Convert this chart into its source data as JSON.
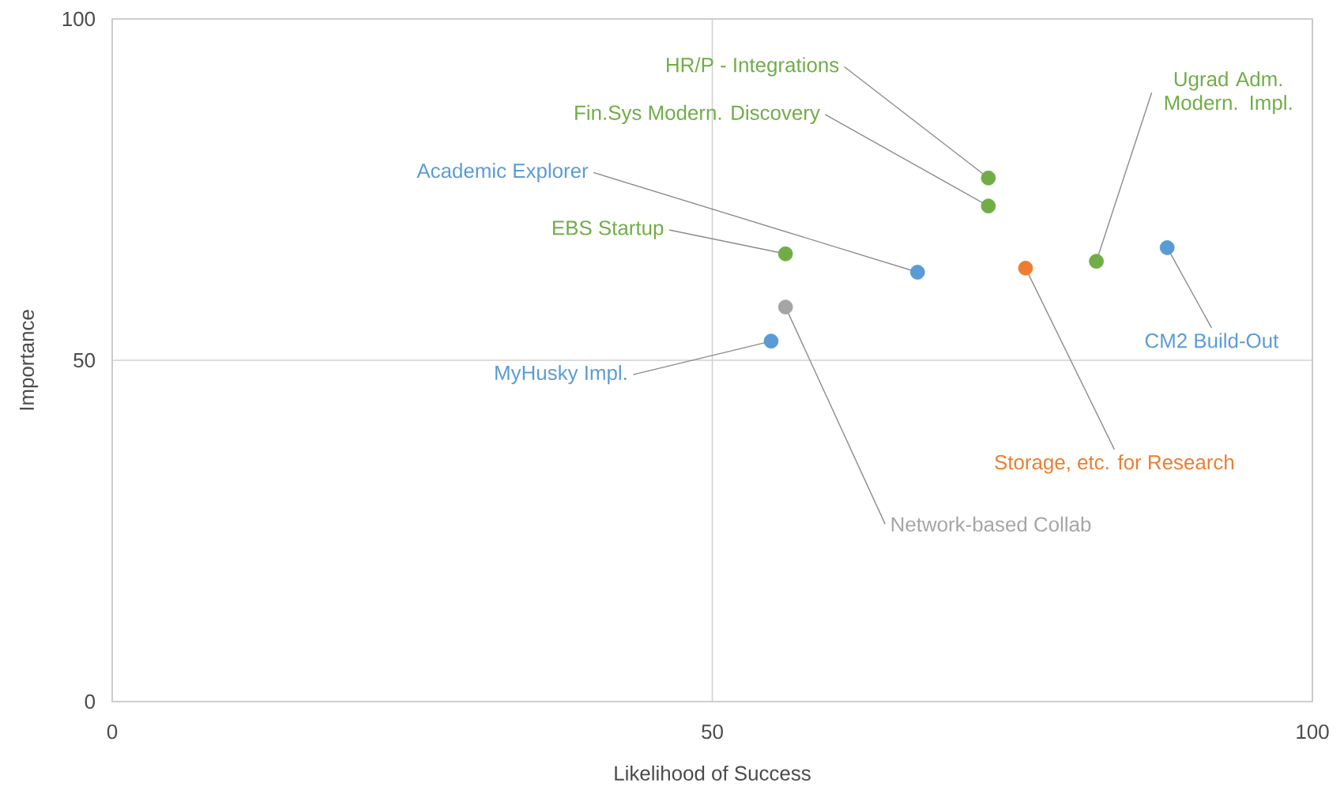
{
  "chart_data": {
    "type": "scatter",
    "xlabel": "Likelihood of Success",
    "ylabel": "Importance",
    "xlim": [
      0,
      100
    ],
    "ylim": [
      0,
      100
    ],
    "xticks": [
      0,
      50,
      100
    ],
    "yticks": [
      0,
      50,
      100
    ],
    "grid": true,
    "marker": "circle",
    "series": [
      {
        "color": "#5b9bd5",
        "x": [
          67.1,
          87.9,
          54.9
        ],
        "values": [
          62.9,
          66.5,
          52.8
        ]
      },
      {
        "color": "#70ad47",
        "x": [
          73.0,
          73.0,
          56.1,
          82.0
        ],
        "values": [
          76.7,
          72.6,
          65.6,
          64.5
        ]
      },
      {
        "color": "#ed7d31",
        "x": [
          76.1
        ],
        "values": [
          63.5
        ]
      },
      {
        "color": "#a5a5a5",
        "x": [
          56.1
        ],
        "values": [
          57.8
        ]
      }
    ],
    "annotations": [
      {
        "text": "HR/P - Integrations",
        "x": 73.0,
        "y": 76.7
      },
      {
        "text": "Fin.Sys Modern. Discovery",
        "x": 73.0,
        "y": 72.6
      },
      {
        "text": "Academic Explorer",
        "x": 67.1,
        "y": 62.9
      },
      {
        "text": "EBS Startup",
        "x": 56.1,
        "y": 65.6
      },
      {
        "text": "Ugrad Adm. Modern. Impl.",
        "x": 82.0,
        "y": 64.5
      },
      {
        "text": "CM2 Build-Out",
        "x": 87.9,
        "y": 66.5
      },
      {
        "text": "Storage, etc. for Research",
        "x": 76.1,
        "y": 63.5
      },
      {
        "text": "Network-based Collab",
        "x": 56.1,
        "y": 57.8
      },
      {
        "text": "MyHusky Impl.",
        "x": 54.9,
        "y": 52.8
      }
    ]
  }
}
